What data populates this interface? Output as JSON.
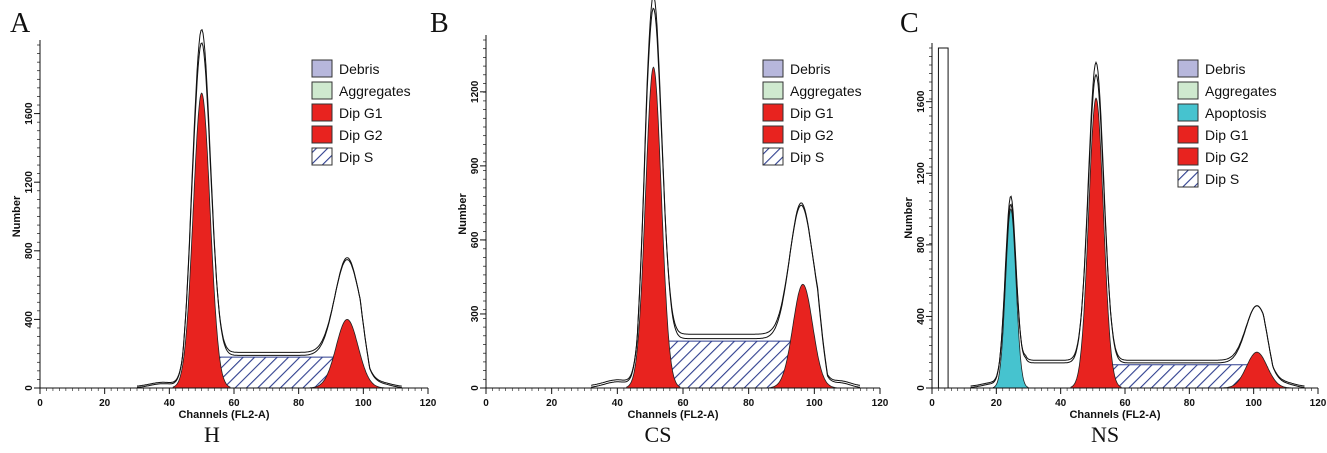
{
  "figure": {
    "panels": [
      {
        "letter": "A",
        "caption": "H"
      },
      {
        "letter": "B",
        "caption": "CS"
      },
      {
        "letter": "C",
        "caption": "NS"
      }
    ]
  },
  "colors": {
    "debris": "#b7b7dc",
    "aggregates": "#cfe9cf",
    "apoptosis": "#46c3cf",
    "dip_g1": "#e8231f",
    "dip_g2": "#e8231f",
    "dip_s_hatch": "#2f3f8f",
    "curve": "#111111"
  },
  "chart_data": [
    {
      "type": "area",
      "title": "",
      "xlabel": "Channels (FL2-A)",
      "ylabel": "Number",
      "xlim": [
        0,
        120
      ],
      "ylim": [
        0,
        2000
      ],
      "xticks": [
        "0",
        "20",
        "40",
        "60",
        "80",
        "100",
        "120"
      ],
      "yticks": [
        {
          "value": 0,
          "label": "0"
        },
        {
          "value": 400,
          "label": "400"
        },
        {
          "value": 800,
          "label": "800"
        },
        {
          "value": 1200,
          "label": "1200"
        },
        {
          "value": 1600,
          "label": "1600"
        }
      ],
      "legend": {
        "position": "top-right",
        "entries": [
          "Debris",
          "Aggregates",
          "Dip G1",
          "Dip G2",
          "Dip S"
        ]
      },
      "series": [
        {
          "name": "Dip G1",
          "kind": "peak",
          "center": 50,
          "sigma": 2.6,
          "peak": 1720
        },
        {
          "name": "Dip G2",
          "kind": "peak",
          "center": 95,
          "sigma": 3.4,
          "peak": 400
        },
        {
          "name": "Dip S",
          "kind": "plateau",
          "start": 48,
          "end": 98,
          "level": 180
        },
        {
          "name": "Total",
          "kind": "outline",
          "peaks": [
            {
              "center": 50,
              "sigma": 2.7,
              "peak": 1900
            },
            {
              "center": 95,
              "sigma": 3.8,
              "peak": 570
            }
          ],
          "level": 190,
          "start": 38,
          "end": 106
        }
      ]
    },
    {
      "type": "area",
      "title": "",
      "xlabel": "Channels (FL2-A)",
      "ylabel": "Number",
      "xlim": [
        0,
        120
      ],
      "ylim": [
        0,
        1410
      ],
      "xticks": [
        "0",
        "20",
        "40",
        "60",
        "80",
        "100",
        "120"
      ],
      "yticks": [
        {
          "value": 0,
          "label": "0"
        },
        {
          "value": 300,
          "label": "300"
        },
        {
          "value": 600,
          "label": "600"
        },
        {
          "value": 900,
          "label": "900"
        },
        {
          "value": 1200,
          "label": "1200"
        }
      ],
      "legend": {
        "position": "top-right",
        "entries": [
          "Debris",
          "Aggregates",
          "Dip G1",
          "Dip G2",
          "Dip S"
        ]
      },
      "series": [
        {
          "name": "Dip G1",
          "kind": "peak",
          "center": 51,
          "sigma": 2.4,
          "peak": 1300
        },
        {
          "name": "Dip G2",
          "kind": "peak",
          "center": 96.5,
          "sigma": 3.0,
          "peak": 420
        },
        {
          "name": "Dip S",
          "kind": "plateau",
          "start": 49,
          "end": 99,
          "level": 190
        },
        {
          "name": "Total",
          "kind": "outline",
          "peaks": [
            {
              "center": 51,
              "sigma": 2.5,
              "peak": 1390
            },
            {
              "center": 96,
              "sigma": 3.5,
              "peak": 550
            }
          ],
          "level": 200,
          "start": 40,
          "end": 108
        }
      ]
    },
    {
      "type": "area",
      "title": "",
      "xlabel": "Channels (FL2-A)",
      "ylabel": "Number",
      "xlim": [
        0,
        120
      ],
      "ylim": [
        0,
        1900
      ],
      "xticks": [
        "0",
        "20",
        "40",
        "60",
        "80",
        "100",
        "120"
      ],
      "yticks": [
        {
          "value": 0,
          "label": "0"
        },
        {
          "value": 400,
          "label": "400"
        },
        {
          "value": 800,
          "label": "800"
        },
        {
          "value": 1200,
          "label": "1200"
        },
        {
          "value": 1600,
          "label": "1600"
        }
      ],
      "legend": {
        "position": "top-right",
        "entries": [
          "Debris",
          "Aggregates",
          "Apoptosis",
          "Dip G1",
          "Dip G2",
          "Dip S"
        ]
      },
      "series": [
        {
          "name": "Apoptosis",
          "kind": "peak",
          "center": 24.5,
          "sigma": 1.6,
          "peak": 1000
        },
        {
          "name": "Dip G1",
          "kind": "peak",
          "center": 51,
          "sigma": 2.3,
          "peak": 1620
        },
        {
          "name": "Dip G2",
          "kind": "peak",
          "center": 101,
          "sigma": 3.2,
          "peak": 200
        },
        {
          "name": "Dip S",
          "kind": "plateau",
          "start": 49,
          "end": 102,
          "level": 130
        },
        {
          "name": "Debris",
          "kind": "spike",
          "start": 2,
          "end": 5,
          "level": 1900
        },
        {
          "name": "Total",
          "kind": "outline",
          "peaks": [
            {
              "center": 24.5,
              "sigma": 1.7,
              "peak": 1060
            },
            {
              "center": 51,
              "sigma": 2.4,
              "peak": 1680
            },
            {
              "center": 101,
              "sigma": 3.4,
              "peak": 320
            }
          ],
          "level": 140,
          "start": 20,
          "end": 110
        }
      ]
    }
  ]
}
